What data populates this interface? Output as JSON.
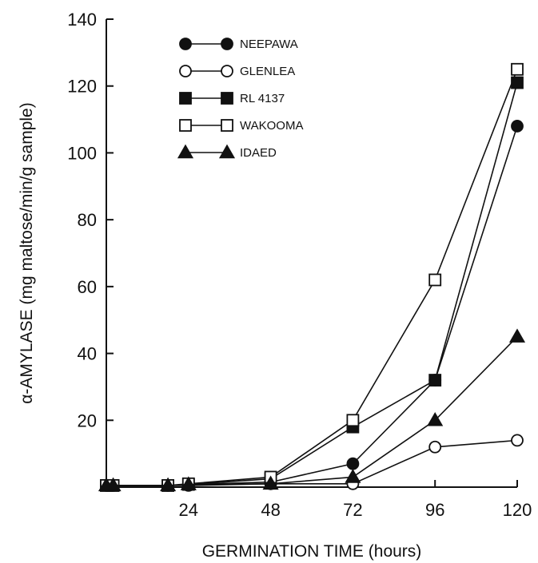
{
  "chart_data": {
    "type": "line",
    "title": "",
    "xlabel": "GERMINATION TIME (hours)",
    "ylabel": "α-AMYLASE (mg maltose/min/g sample)",
    "xlim": [
      0,
      120
    ],
    "ylim": [
      0,
      140
    ],
    "x_ticks": [
      24,
      48,
      72,
      96,
      120
    ],
    "y_ticks": [
      20,
      40,
      60,
      80,
      100,
      120,
      140
    ],
    "grid": false,
    "legend_position": "top-left",
    "series": [
      {
        "name": "NEEPAWA",
        "marker": "circle-filled",
        "x": [
          0,
          2,
          18,
          24,
          48,
          72,
          96,
          120
        ],
        "y": [
          0.5,
          0.5,
          0.5,
          0.8,
          1.5,
          7,
          32,
          108
        ]
      },
      {
        "name": "GLENLEA",
        "marker": "circle-open",
        "x": [
          0,
          2,
          18,
          24,
          48,
          72,
          96,
          120
        ],
        "y": [
          0.5,
          0.5,
          0.5,
          0.5,
          1,
          1,
          12,
          14
        ]
      },
      {
        "name": "RL 4137",
        "marker": "square-filled",
        "x": [
          0,
          2,
          18,
          24,
          48,
          72,
          96,
          120
        ],
        "y": [
          0.5,
          0.5,
          0.5,
          0.8,
          2.5,
          18,
          32,
          121
        ]
      },
      {
        "name": "WAKOOMA",
        "marker": "square-open",
        "x": [
          0,
          2,
          18,
          24,
          48,
          72,
          96,
          120
        ],
        "y": [
          0.5,
          0.5,
          0.5,
          1,
          3,
          20,
          62,
          125
        ]
      },
      {
        "name": "IDAED",
        "marker": "triangle-filled",
        "x": [
          0,
          2,
          18,
          24,
          48,
          72,
          96,
          120
        ],
        "y": [
          0.5,
          0.5,
          0.5,
          0.8,
          1,
          3,
          20,
          45
        ]
      }
    ]
  }
}
